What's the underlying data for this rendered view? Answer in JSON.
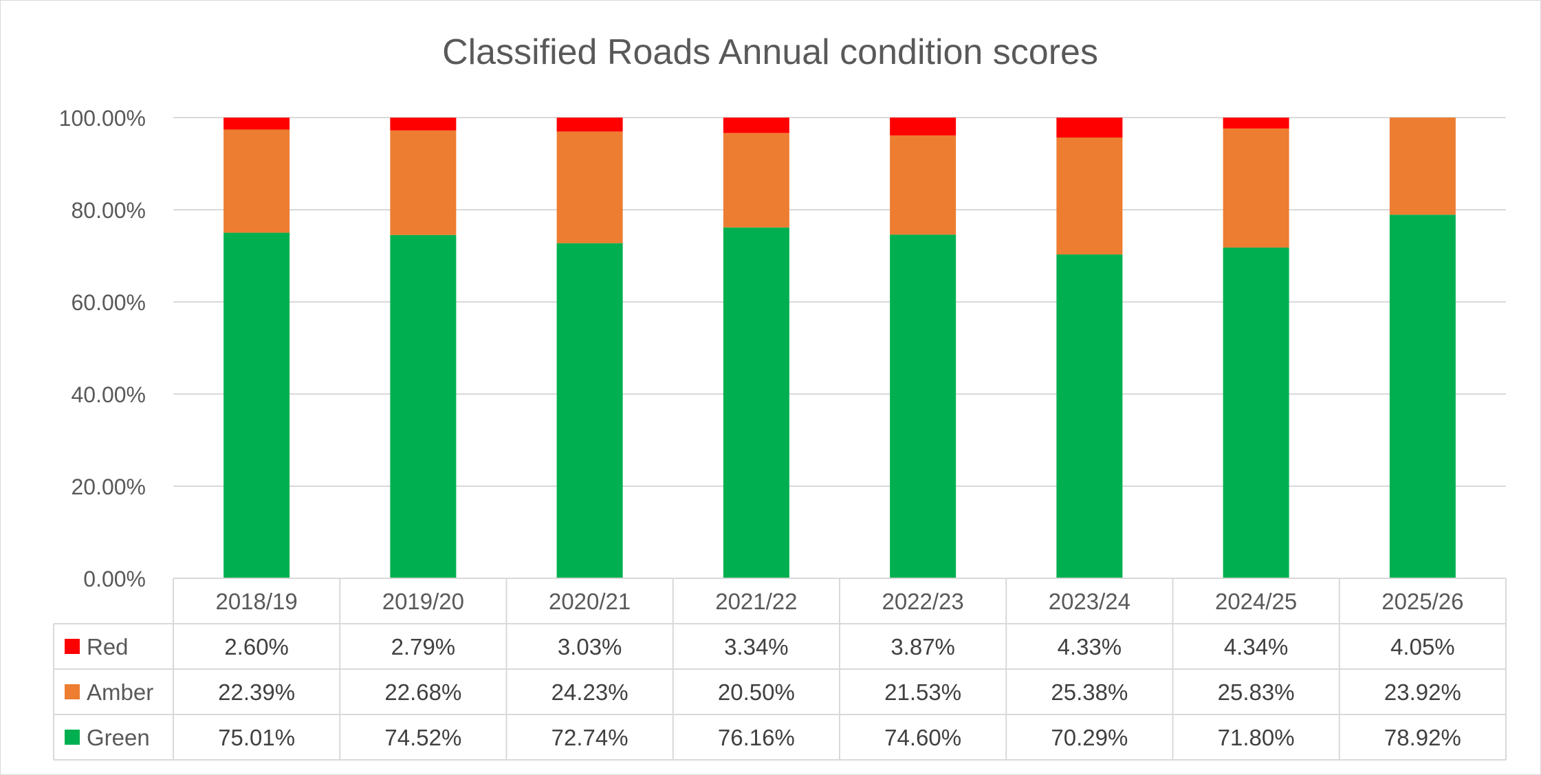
{
  "chart_data": {
    "type": "bar",
    "stacked": true,
    "title": "Classified Roads Annual condition scores",
    "categories": [
      "2018/19",
      "2019/20",
      "2020/21",
      "2021/22",
      "2022/23",
      "2023/24",
      "2024/25",
      "2025/26"
    ],
    "series": [
      {
        "name": "Red",
        "color": "#ff0000",
        "values": [
          2.6,
          2.79,
          3.03,
          3.34,
          3.87,
          4.33,
          4.34,
          4.05
        ],
        "labels": [
          "2.60%",
          "2.79%",
          "3.03%",
          "3.34%",
          "3.87%",
          "4.33%",
          "4.34%",
          "4.05%"
        ]
      },
      {
        "name": "Amber",
        "color": "#ed7d31",
        "values": [
          22.39,
          22.68,
          24.23,
          20.5,
          21.53,
          25.38,
          25.83,
          23.92
        ],
        "labels": [
          "22.39%",
          "22.68%",
          "24.23%",
          "20.50%",
          "21.53%",
          "25.38%",
          "25.83%",
          "23.92%"
        ]
      },
      {
        "name": "Green",
        "color": "#00b050",
        "values": [
          75.01,
          74.52,
          72.74,
          76.16,
          74.6,
          70.29,
          71.8,
          78.92
        ],
        "labels": [
          "75.01%",
          "74.52%",
          "72.74%",
          "76.16%",
          "74.60%",
          "70.29%",
          "71.80%",
          "78.92%"
        ]
      }
    ],
    "stack_order": [
      "Green",
      "Amber",
      "Red"
    ],
    "ylim": [
      0,
      100
    ],
    "yticks": [
      0,
      20,
      40,
      60,
      80,
      100
    ],
    "ytick_labels": [
      "0.00%",
      "20.00%",
      "40.00%",
      "60.00%",
      "80.00%",
      "100.00%"
    ],
    "grid": true,
    "data_table": true,
    "legend_position": "data-table-left"
  }
}
